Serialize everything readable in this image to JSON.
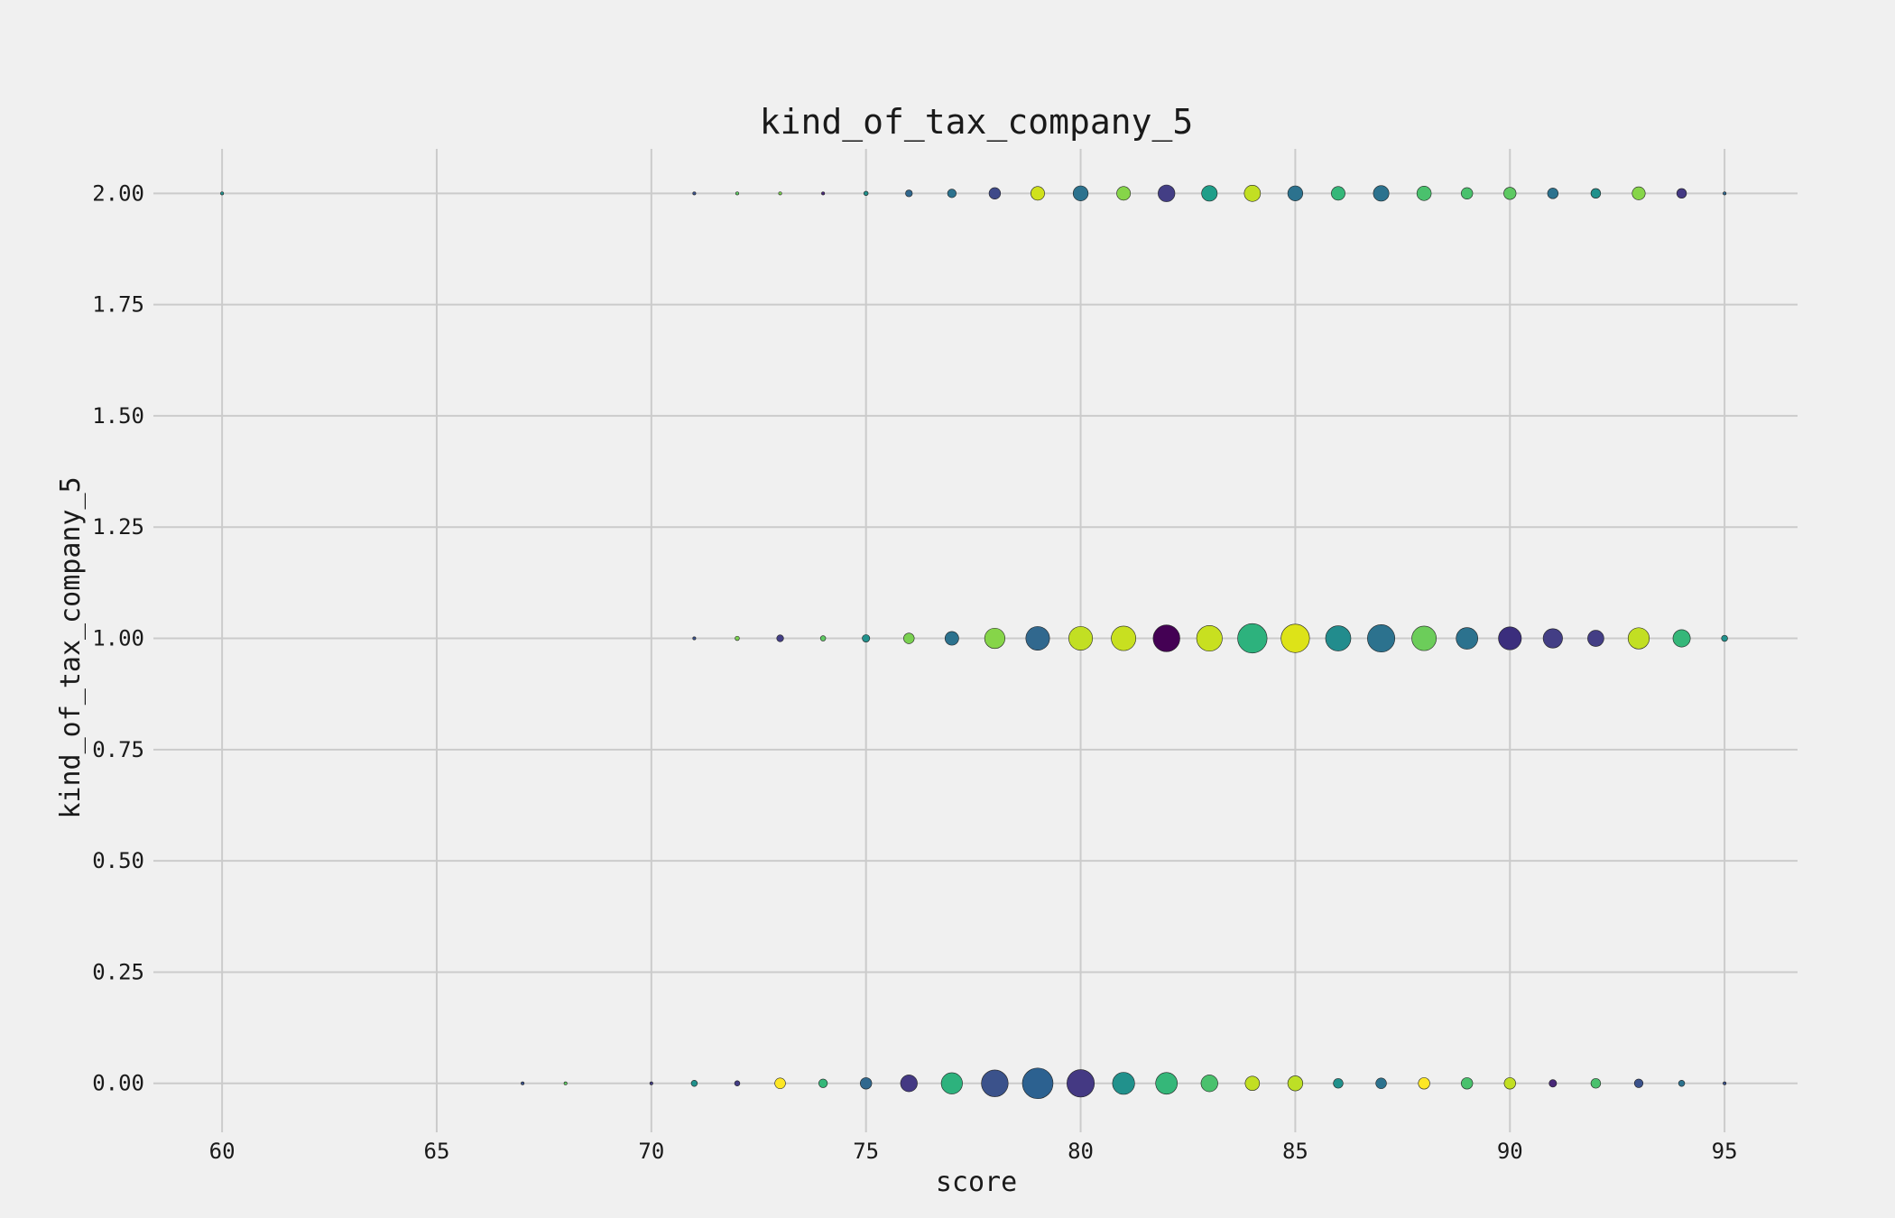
{
  "chart_data": {
    "type": "scatter",
    "title": "kind_of_tax_company_5",
    "xlabel": "score",
    "ylabel": "kind_of_tax_company_5",
    "xlim": [
      58.4,
      96.7
    ],
    "ylim": [
      -0.11,
      2.1
    ],
    "xticks": [
      60,
      65,
      70,
      75,
      80,
      85,
      90,
      95
    ],
    "yticks": [
      0,
      0.25,
      0.5,
      0.75,
      1.0,
      1.25,
      1.5,
      1.75,
      2.0
    ],
    "ytick_labels": [
      "0.00",
      "0.25",
      "0.50",
      "0.75",
      "1.00",
      "1.25",
      "1.50",
      "1.75",
      "2.00"
    ],
    "grid": true,
    "marker_size_encodes": "count",
    "colormap": "viridis",
    "points": [
      {
        "x": 60,
        "y": 2,
        "count": 1,
        "color": "#21918c"
      },
      {
        "x": 71,
        "y": 2,
        "count": 1,
        "color": "#3b528b"
      },
      {
        "x": 72,
        "y": 2,
        "count": 1,
        "color": "#5ec962"
      },
      {
        "x": 73,
        "y": 2,
        "count": 1,
        "color": "#7ad151"
      },
      {
        "x": 74,
        "y": 2,
        "count": 1,
        "color": "#482878"
      },
      {
        "x": 75,
        "y": 2,
        "count": 2,
        "color": "#21918c"
      },
      {
        "x": 76,
        "y": 2,
        "count": 5,
        "color": "#31688e"
      },
      {
        "x": 77,
        "y": 2,
        "count": 8,
        "color": "#2c728e"
      },
      {
        "x": 78,
        "y": 2,
        "count": 14,
        "color": "#3e4989"
      },
      {
        "x": 79,
        "y": 2,
        "count": 20,
        "color": "#d0e11c"
      },
      {
        "x": 80,
        "y": 2,
        "count": 24,
        "color": "#2c728e"
      },
      {
        "x": 81,
        "y": 2,
        "count": 20,
        "color": "#86d549"
      },
      {
        "x": 82,
        "y": 2,
        "count": 30,
        "color": "#433e85"
      },
      {
        "x": 83,
        "y": 2,
        "count": 26,
        "color": "#1f9e89"
      },
      {
        "x": 84,
        "y": 2,
        "count": 28,
        "color": "#c2df23"
      },
      {
        "x": 85,
        "y": 2,
        "count": 24,
        "color": "#2c728e"
      },
      {
        "x": 86,
        "y": 2,
        "count": 20,
        "color": "#35b779"
      },
      {
        "x": 87,
        "y": 2,
        "count": 26,
        "color": "#2c728e"
      },
      {
        "x": 88,
        "y": 2,
        "count": 22,
        "color": "#4ac16d"
      },
      {
        "x": 89,
        "y": 2,
        "count": 14,
        "color": "#4ac16d"
      },
      {
        "x": 90,
        "y": 2,
        "count": 16,
        "color": "#5ec962"
      },
      {
        "x": 91,
        "y": 2,
        "count": 12,
        "color": "#2c728e"
      },
      {
        "x": 92,
        "y": 2,
        "count": 10,
        "color": "#21918c"
      },
      {
        "x": 93,
        "y": 2,
        "count": 18,
        "color": "#86d549"
      },
      {
        "x": 94,
        "y": 2,
        "count": 10,
        "color": "#443983"
      },
      {
        "x": 95,
        "y": 2,
        "count": 1,
        "color": "#31688e"
      },
      {
        "x": 71,
        "y": 1,
        "count": 1,
        "color": "#3b528b"
      },
      {
        "x": 72,
        "y": 1,
        "count": 2,
        "color": "#7ad151"
      },
      {
        "x": 73,
        "y": 1,
        "count": 5,
        "color": "#433e85"
      },
      {
        "x": 74,
        "y": 1,
        "count": 3,
        "color": "#5ec962"
      },
      {
        "x": 75,
        "y": 1,
        "count": 6,
        "color": "#21918c"
      },
      {
        "x": 76,
        "y": 1,
        "count": 12,
        "color": "#7ad151"
      },
      {
        "x": 77,
        "y": 1,
        "count": 20,
        "color": "#2c728e"
      },
      {
        "x": 78,
        "y": 1,
        "count": 44,
        "color": "#86d549"
      },
      {
        "x": 79,
        "y": 1,
        "count": 60,
        "color": "#31688e"
      },
      {
        "x": 80,
        "y": 1,
        "count": 60,
        "color": "#c2df23"
      },
      {
        "x": 81,
        "y": 1,
        "count": 64,
        "color": "#c8e020"
      },
      {
        "x": 82,
        "y": 1,
        "count": 76,
        "color": "#440154"
      },
      {
        "x": 83,
        "y": 1,
        "count": 70,
        "color": "#c8e020"
      },
      {
        "x": 84,
        "y": 1,
        "count": 92,
        "color": "#2db27d"
      },
      {
        "x": 85,
        "y": 1,
        "count": 86,
        "color": "#dde318"
      },
      {
        "x": 86,
        "y": 1,
        "count": 68,
        "color": "#228c8d"
      },
      {
        "x": 87,
        "y": 1,
        "count": 80,
        "color": "#2c728e"
      },
      {
        "x": 88,
        "y": 1,
        "count": 64,
        "color": "#6ccd5a"
      },
      {
        "x": 89,
        "y": 1,
        "count": 50,
        "color": "#2c728e"
      },
      {
        "x": 90,
        "y": 1,
        "count": 56,
        "color": "#3b2e7d"
      },
      {
        "x": 91,
        "y": 1,
        "count": 40,
        "color": "#433e85"
      },
      {
        "x": 92,
        "y": 1,
        "count": 28,
        "color": "#433e85"
      },
      {
        "x": 93,
        "y": 1,
        "count": 48,
        "color": "#c2df23"
      },
      {
        "x": 94,
        "y": 1,
        "count": 32,
        "color": "#35b779"
      },
      {
        "x": 95,
        "y": 1,
        "count": 4,
        "color": "#21918c"
      },
      {
        "x": 67,
        "y": 0,
        "count": 1,
        "color": "#3b528b"
      },
      {
        "x": 68,
        "y": 0,
        "count": 1,
        "color": "#5ec962"
      },
      {
        "x": 70,
        "y": 0,
        "count": 1,
        "color": "#433e85"
      },
      {
        "x": 71,
        "y": 0,
        "count": 4,
        "color": "#21918c"
      },
      {
        "x": 72,
        "y": 0,
        "count": 3,
        "color": "#433e85"
      },
      {
        "x": 73,
        "y": 0,
        "count": 12,
        "color": "#fde725"
      },
      {
        "x": 74,
        "y": 0,
        "count": 8,
        "color": "#35b779"
      },
      {
        "x": 75,
        "y": 0,
        "count": 14,
        "color": "#31688e"
      },
      {
        "x": 76,
        "y": 0,
        "count": 30,
        "color": "#443983"
      },
      {
        "x": 77,
        "y": 0,
        "count": 48,
        "color": "#2db27d"
      },
      {
        "x": 78,
        "y": 0,
        "count": 76,
        "color": "#3b528b"
      },
      {
        "x": 79,
        "y": 0,
        "count": 100,
        "color": "#2c6190"
      },
      {
        "x": 80,
        "y": 0,
        "count": 80,
        "color": "#443983"
      },
      {
        "x": 81,
        "y": 0,
        "count": 52,
        "color": "#21918c"
      },
      {
        "x": 82,
        "y": 0,
        "count": 50,
        "color": "#35b779"
      },
      {
        "x": 83,
        "y": 0,
        "count": 30,
        "color": "#4ac16d"
      },
      {
        "x": 84,
        "y": 0,
        "count": 22,
        "color": "#c2df23"
      },
      {
        "x": 85,
        "y": 0,
        "count": 24,
        "color": "#bddf26"
      },
      {
        "x": 86,
        "y": 0,
        "count": 10,
        "color": "#21918c"
      },
      {
        "x": 87,
        "y": 0,
        "count": 12,
        "color": "#2c728e"
      },
      {
        "x": 88,
        "y": 0,
        "count": 14,
        "color": "#fde725"
      },
      {
        "x": 89,
        "y": 0,
        "count": 14,
        "color": "#4ac16d"
      },
      {
        "x": 90,
        "y": 0,
        "count": 14,
        "color": "#c2df23"
      },
      {
        "x": 91,
        "y": 0,
        "count": 6,
        "color": "#482878"
      },
      {
        "x": 92,
        "y": 0,
        "count": 10,
        "color": "#4ac16d"
      },
      {
        "x": 93,
        "y": 0,
        "count": 8,
        "color": "#3b528b"
      },
      {
        "x": 94,
        "y": 0,
        "count": 4,
        "color": "#2c728e"
      },
      {
        "x": 95,
        "y": 0,
        "count": 1,
        "color": "#3b528b"
      }
    ]
  }
}
